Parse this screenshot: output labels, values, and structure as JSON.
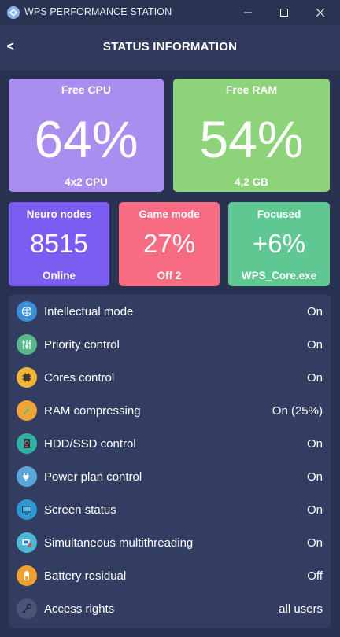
{
  "window": {
    "title": "WPS PERFORMANCE STATION",
    "icons": {
      "app": "app-logo-icon",
      "minimize": "minimize-icon",
      "maximize": "maximize-icon",
      "close": "close-icon"
    }
  },
  "header": {
    "back_symbol": "<",
    "title": "STATUS INFORMATION"
  },
  "tiles": {
    "cpu": {
      "label": "Free CPU",
      "value": "64%",
      "sub": "4x2 CPU",
      "color": "#a98ef0"
    },
    "ram": {
      "label": "Free RAM",
      "value": "54%",
      "sub": "4,2 GB",
      "color": "#8dd37a"
    },
    "neuro": {
      "label": "Neuro nodes",
      "value": "8515",
      "sub": "Online",
      "color": "#7a5cf0"
    },
    "game": {
      "label": "Game mode",
      "value": "27%",
      "sub": "Off 2",
      "color": "#f76c83"
    },
    "focused": {
      "label": "Focused",
      "value": "+6%",
      "sub": "WPS_Core.exe",
      "color": "#5ec792"
    }
  },
  "status_list": [
    {
      "icon": "brain-icon",
      "icon_color": "#3a8fd8",
      "label": "Intellectual mode",
      "value": "On"
    },
    {
      "icon": "sliders-icon",
      "icon_color": "#58b88a",
      "label": "Priority control",
      "value": "On"
    },
    {
      "icon": "cpu-chip-icon",
      "icon_color": "#f2b535",
      "label": "Cores control",
      "value": "On"
    },
    {
      "icon": "ram-stick-icon",
      "icon_color": "#f0a43a",
      "label": "RAM compressing",
      "value": "On (25%)"
    },
    {
      "icon": "hard-drive-icon",
      "icon_color": "#2fb3a7",
      "label": "HDD/SSD control",
      "value": "On"
    },
    {
      "icon": "power-plug-icon",
      "icon_color": "#5aa6d9",
      "label": "Power plan control",
      "value": "On"
    },
    {
      "icon": "monitor-icon",
      "icon_color": "#2d9ad6",
      "label": "Screen status",
      "value": "On"
    },
    {
      "icon": "multithreading-icon",
      "icon_color": "#4fb6d8",
      "label": "Simultaneous multithreading",
      "value": "On"
    },
    {
      "icon": "battery-icon",
      "icon_color": "#f0a030",
      "label": "Battery residual",
      "value": "Off"
    },
    {
      "icon": "key-icon",
      "icon_color": "#4a5578",
      "label": "Access rights",
      "value": "all users"
    }
  ]
}
